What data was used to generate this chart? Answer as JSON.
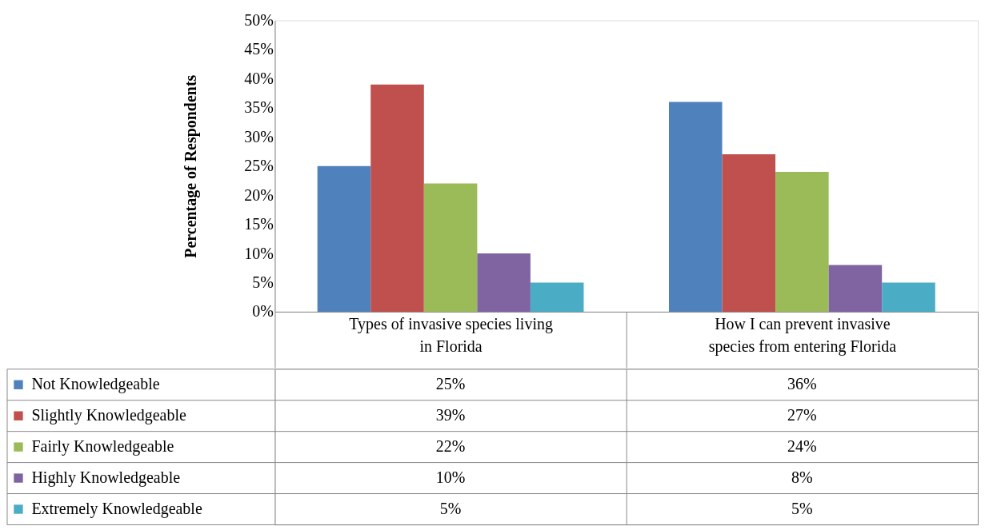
{
  "chart_data": {
    "type": "bar",
    "ylabel": "Percentage of Respondents",
    "categories": [
      "Types of invasive species living in Florida",
      "How I can prevent invasive species from entering Florida"
    ],
    "series": [
      {
        "name": "Not Knowledgeable",
        "color": "#4f81bd",
        "values": [
          25,
          36
        ],
        "value_labels": [
          "25%",
          "36%"
        ]
      },
      {
        "name": "Slightly Knowledgeable",
        "color": "#c0504d",
        "values": [
          39,
          27
        ],
        "value_labels": [
          "39%",
          "27%"
        ]
      },
      {
        "name": "Fairly Knowledgeable",
        "color": "#9bbb59",
        "values": [
          22,
          24
        ],
        "value_labels": [
          "22%",
          "24%"
        ]
      },
      {
        "name": "Highly Knowledgeable",
        "color": "#8064a2",
        "values": [
          10,
          8
        ],
        "value_labels": [
          "10%",
          "8%"
        ]
      },
      {
        "name": "Extremely Knowledgeable",
        "color": "#4bacc6",
        "values": [
          5,
          5
        ],
        "value_labels": [
          "5%",
          "5%"
        ]
      }
    ],
    "ylim": [
      0,
      50
    ],
    "yticks": [
      {
        "value": 0,
        "label": "0%"
      },
      {
        "value": 5,
        "label": "5%"
      },
      {
        "value": 10,
        "label": "10%"
      },
      {
        "value": 15,
        "label": "15%"
      },
      {
        "value": 20,
        "label": "20%"
      },
      {
        "value": 25,
        "label": "25%"
      },
      {
        "value": 30,
        "label": "30%"
      },
      {
        "value": 35,
        "label": "35%"
      },
      {
        "value": 40,
        "label": "40%"
      },
      {
        "value": 45,
        "label": "45%"
      },
      {
        "value": 50,
        "label": "50%"
      }
    ],
    "grid": false,
    "legend": "bottom"
  }
}
